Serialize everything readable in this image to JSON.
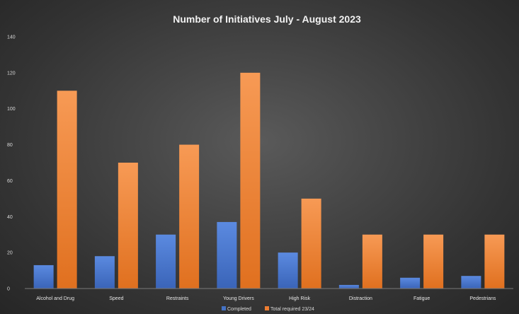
{
  "chart_data": {
    "type": "bar",
    "title": "Number of Initiatives July - August 2023",
    "xlabel": "",
    "ylabel": "",
    "ylim": [
      0,
      140
    ],
    "yticks": [
      0,
      20,
      40,
      60,
      80,
      100,
      120,
      140
    ],
    "grid": false,
    "legend_position": "bottom",
    "categories": [
      "Alcohol and Drug",
      "Speed",
      "Restraints",
      "Young Drivers",
      "High Risk",
      "Distraction",
      "Fatigue",
      "Pedestrians"
    ],
    "series": [
      {
        "name": "Completed",
        "color": "#4472c4",
        "values": [
          13,
          18,
          30,
          37,
          20,
          2,
          6,
          7
        ]
      },
      {
        "name": "Total required 23/24",
        "color": "#ed7d31",
        "values": [
          110,
          70,
          80,
          120,
          50,
          30,
          30,
          30
        ]
      }
    ]
  }
}
